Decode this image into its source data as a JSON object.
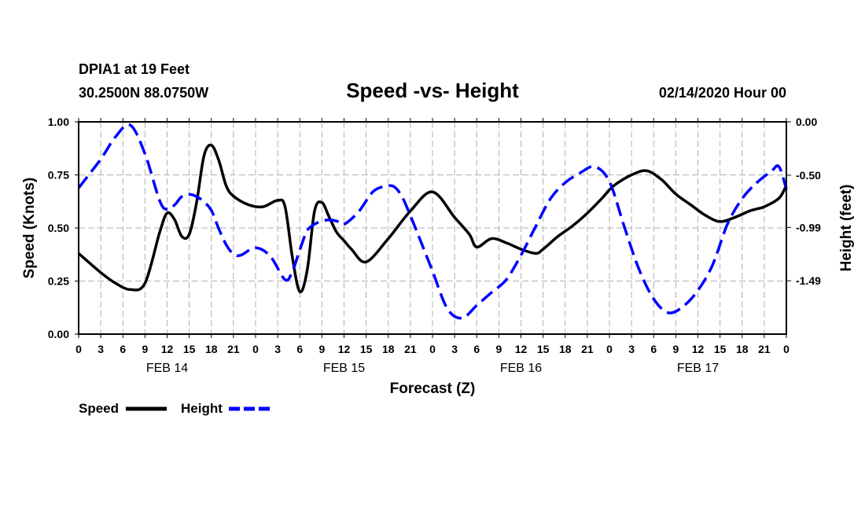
{
  "header": {
    "station": "DPIA1 at 19 Feet",
    "location": "30.2500N 88.0750W",
    "datetime": "02/14/2020 Hour 00"
  },
  "chart_data": {
    "type": "line",
    "title": "Speed -vs- Height",
    "xlabel": "Forecast (Z)",
    "ylabel": "Speed (Knots)",
    "y2label": "Height (feet)",
    "xlim": [
      0,
      96
    ],
    "ylim": [
      0,
      1.0
    ],
    "y2lim": [
      -1.99,
      0.0
    ],
    "grid": true,
    "legend_position": "bottom-left",
    "x_tick_labels": [
      "0",
      "3",
      "6",
      "9",
      "12",
      "15",
      "18",
      "21",
      "0",
      "3",
      "6",
      "9",
      "12",
      "15",
      "18",
      "21",
      "0",
      "3",
      "6",
      "9",
      "12",
      "15",
      "18",
      "21",
      "0",
      "3",
      "6",
      "9",
      "12",
      "15",
      "18",
      "21",
      "0"
    ],
    "date_labels": [
      {
        "hour": 12,
        "label": "FEB 14"
      },
      {
        "hour": 36,
        "label": "FEB 15"
      },
      {
        "hour": 60,
        "label": "FEB 16"
      },
      {
        "hour": 84,
        "label": "FEB 17"
      }
    ],
    "y_ticks": [
      "0.00",
      "0.25",
      "0.50",
      "0.75",
      "1.00"
    ],
    "y2_ticks": [
      {
        "value": 0.0,
        "label": "0.00"
      },
      {
        "value": -0.5,
        "label": "-0.50"
      },
      {
        "value": -0.99,
        "label": "-0.99"
      },
      {
        "value": -1.49,
        "label": "-1.49"
      }
    ],
    "series": [
      {
        "name": "Speed",
        "color": "#000000",
        "style": "solid",
        "axis": "left",
        "x": [
          0,
          3,
          5,
          7,
          9,
          11,
          12,
          13,
          14,
          15,
          16,
          17,
          18,
          19,
          20,
          21,
          23,
          25,
          27,
          28,
          29,
          30,
          31,
          32,
          33,
          34,
          35,
          36,
          37,
          39,
          42,
          45,
          48,
          51,
          53,
          54,
          56,
          58,
          60,
          62,
          63,
          65,
          67,
          69,
          71,
          72,
          73,
          75,
          77,
          79,
          81,
          83,
          85,
          87,
          89,
          91,
          92,
          93,
          95,
          96
        ],
        "values": [
          0.38,
          0.29,
          0.24,
          0.21,
          0.24,
          0.48,
          0.57,
          0.54,
          0.46,
          0.47,
          0.62,
          0.84,
          0.89,
          0.82,
          0.7,
          0.65,
          0.61,
          0.6,
          0.63,
          0.6,
          0.36,
          0.2,
          0.3,
          0.58,
          0.62,
          0.55,
          0.48,
          0.44,
          0.4,
          0.34,
          0.45,
          0.58,
          0.67,
          0.55,
          0.47,
          0.41,
          0.45,
          0.43,
          0.4,
          0.38,
          0.4,
          0.46,
          0.51,
          0.57,
          0.64,
          0.68,
          0.71,
          0.75,
          0.77,
          0.73,
          0.66,
          0.61,
          0.56,
          0.53,
          0.55,
          0.58,
          0.59,
          0.6,
          0.64,
          0.7
        ]
      },
      {
        "name": "Height",
        "color": "#0000ff",
        "style": "dashed",
        "axis": "right",
        "x": [
          0,
          3,
          5,
          7,
          9,
          11,
          12,
          13,
          14,
          15,
          16,
          17,
          18,
          19,
          20,
          21,
          22,
          24,
          26,
          28,
          29,
          30,
          31,
          32,
          33,
          34,
          35,
          36,
          38,
          40,
          42,
          43,
          44,
          45,
          46,
          48,
          50,
          52,
          54,
          56,
          58,
          60,
          62,
          64,
          66,
          68,
          70,
          72,
          74,
          76,
          78,
          80,
          82,
          84,
          86,
          88,
          90,
          92,
          94,
          95,
          96
        ],
        "values": [
          -0.62,
          -0.35,
          -0.14,
          -0.03,
          -0.3,
          -0.74,
          -0.82,
          -0.78,
          -0.7,
          -0.68,
          -0.7,
          -0.75,
          -0.83,
          -1.0,
          -1.15,
          -1.24,
          -1.25,
          -1.18,
          -1.26,
          -1.48,
          -1.4,
          -1.2,
          -1.02,
          -0.96,
          -0.93,
          -0.92,
          -0.93,
          -0.96,
          -0.84,
          -0.65,
          -0.6,
          -0.62,
          -0.72,
          -0.88,
          -1.05,
          -1.4,
          -1.75,
          -1.84,
          -1.72,
          -1.6,
          -1.48,
          -1.25,
          -0.98,
          -0.72,
          -0.57,
          -0.48,
          -0.42,
          -0.56,
          -0.98,
          -1.38,
          -1.66,
          -1.79,
          -1.73,
          -1.58,
          -1.34,
          -0.96,
          -0.72,
          -0.57,
          -0.46,
          -0.42,
          -0.63
        ]
      }
    ]
  },
  "legend": {
    "speed_label": "Speed",
    "height_label": "Height"
  }
}
